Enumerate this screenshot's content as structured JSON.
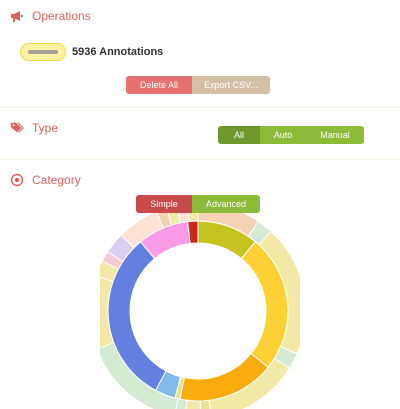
{
  "operations": {
    "title": "Operations",
    "icon": "megaphone-icon",
    "annotation_count": "5936 Annotations",
    "delete_all_label": "Delete All",
    "export_label": "Export CSV..."
  },
  "type": {
    "title": "Type",
    "icon": "tag-icon",
    "options": [
      "All",
      "Auto",
      "Manual"
    ],
    "selected": "All"
  },
  "category": {
    "title": "Category",
    "icon": "target-icon",
    "options": [
      "Simple",
      "Advanced"
    ],
    "selected": "Simple"
  },
  "colors": {
    "accent": "#e0625c",
    "danger_button": "#e7716e",
    "export_button": "#d4c0a4",
    "toggle_active": "#6e9a2d",
    "toggle": "#8bbb38",
    "simple_active": "#c94a4a"
  },
  "chart_data": {
    "type": "sunburst",
    "inner_ring": [
      {
        "value": 12,
        "color": "#c5c31d"
      },
      {
        "value": 27,
        "color": "#fdd134"
      },
      {
        "value": 19,
        "color": "#f7ab0c"
      },
      {
        "value": 1,
        "color": "#ede191"
      },
      {
        "value": 4,
        "color": "#7fbbe6"
      },
      {
        "value": 34,
        "color": "#6480de"
      },
      {
        "value": 10,
        "color": "#f99be6"
      },
      {
        "value": 2,
        "color": "#c9281a"
      }
    ],
    "outer_ring": [
      {
        "value": 12,
        "color": "#f6d2b5"
      },
      {
        "value": 3,
        "color": "#d5ead2"
      },
      {
        "value": 25,
        "color": "#f3e9a6"
      },
      {
        "value": 3,
        "color": "#d5ead2"
      },
      {
        "value": 18,
        "color": "#f3e9a6"
      },
      {
        "value": 2,
        "color": "#ede191"
      },
      {
        "value": 3,
        "color": "#f3e9a6"
      },
      {
        "value": 2,
        "color": "#d5ead2"
      },
      {
        "value": 20,
        "color": "#d5ead2"
      },
      {
        "value": 14,
        "color": "#f3e9a6"
      },
      {
        "value": 3,
        "color": "#f3e9a6"
      },
      {
        "value": 2,
        "color": "#f7c9d3"
      },
      {
        "value": 4,
        "color": "#d8cdf2"
      },
      {
        "value": 8,
        "color": "#fde2d4"
      },
      {
        "value": 2,
        "color": "#f6d2b5"
      },
      {
        "value": 2,
        "color": "#f3e9a6"
      },
      {
        "value": 2,
        "color": "#fde2d4"
      },
      {
        "value": 2,
        "color": "#f3e9a6"
      }
    ]
  }
}
